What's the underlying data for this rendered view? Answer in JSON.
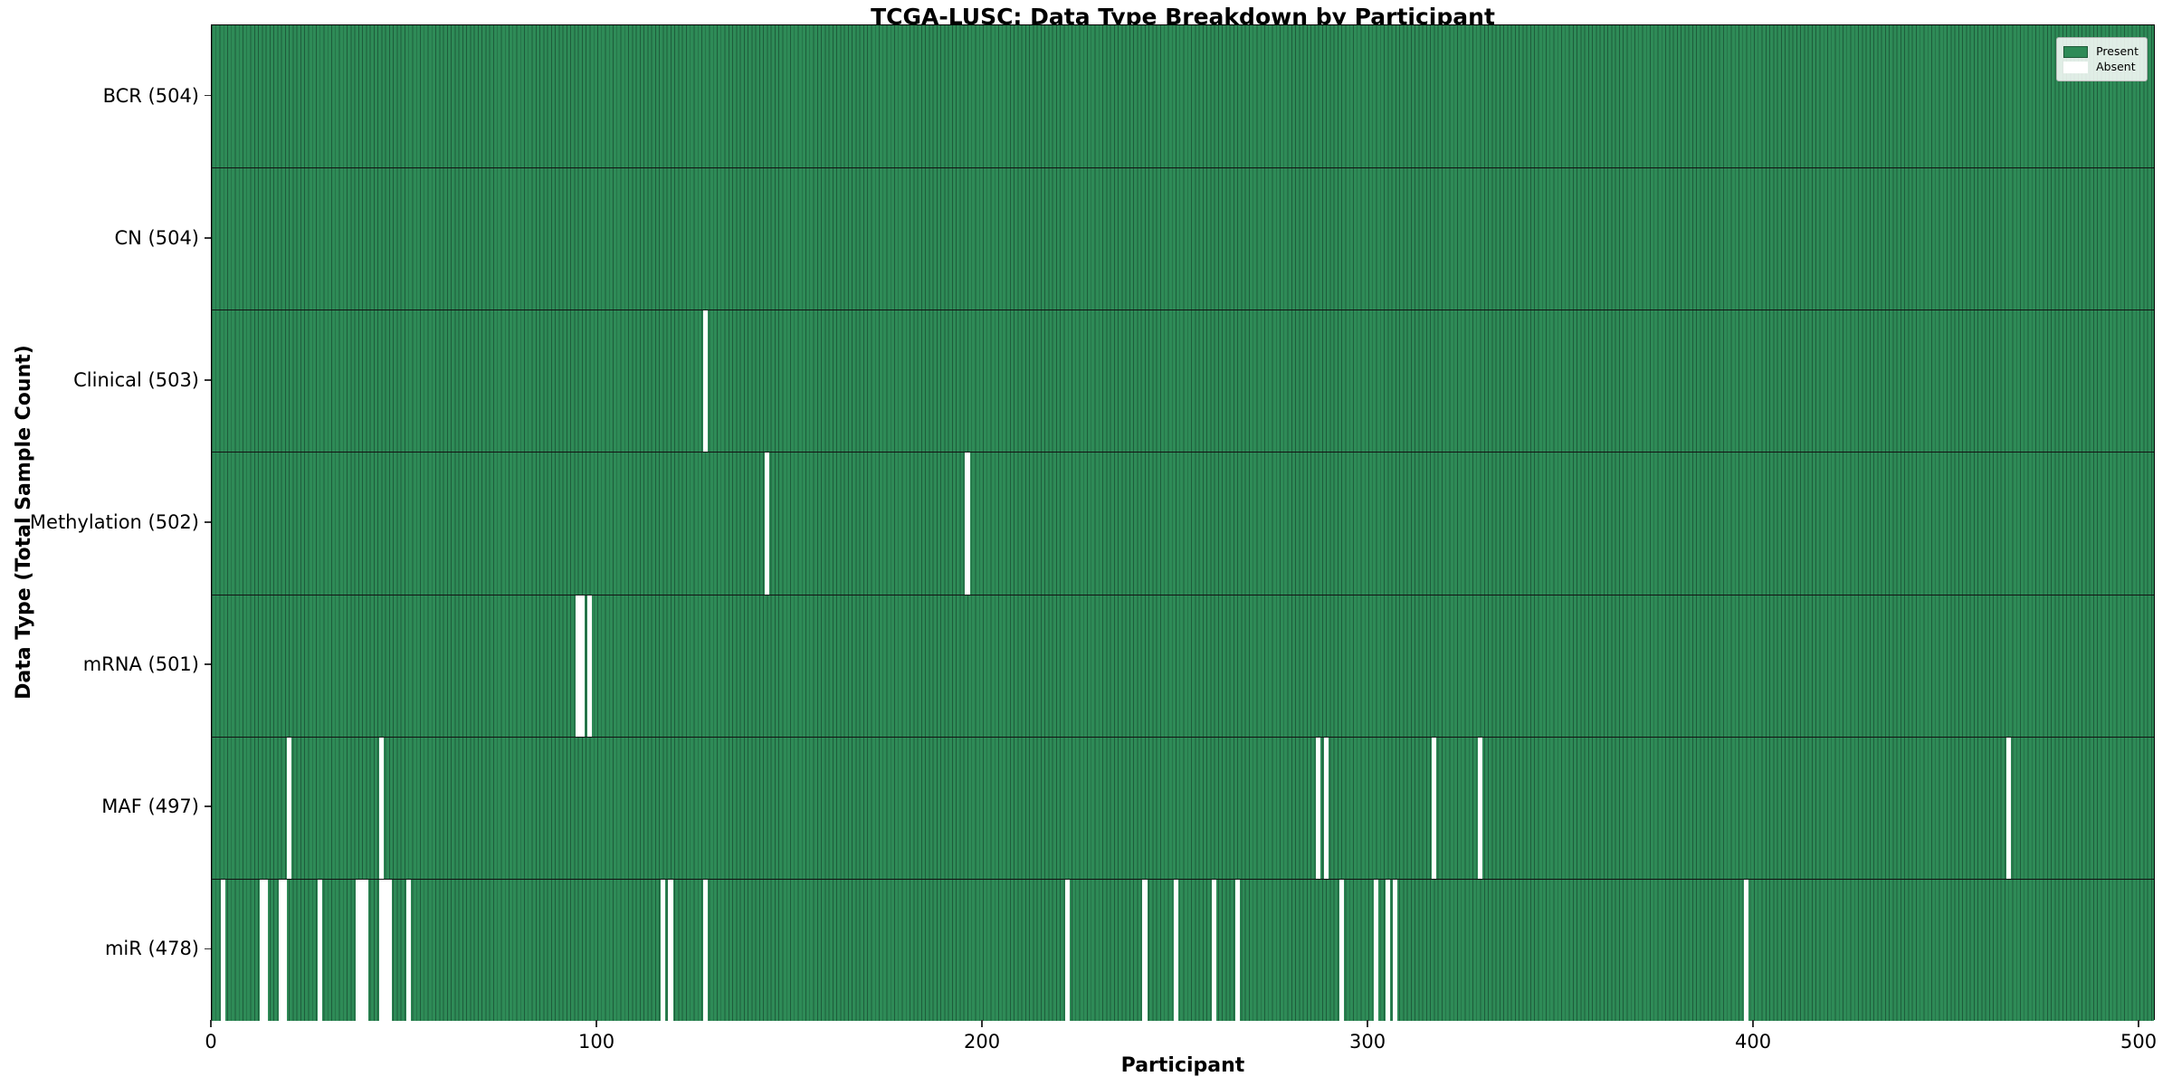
{
  "chart_data": {
    "type": "heatmap",
    "title": "TCGA-LUSC: Data Type Breakdown by Participant",
    "xlabel": "Participant",
    "ylabel": "Data Type (Total Sample Count)",
    "x_ticks": [
      0,
      100,
      200,
      300,
      400,
      500
    ],
    "x_range": [
      0,
      504.2
    ],
    "n_participants": 504,
    "grid": false,
    "legend_position": "upper right",
    "legend": [
      {
        "label": "Present",
        "color": "#2e8b57"
      },
      {
        "label": "Absent",
        "color": "#ffffff"
      }
    ],
    "colors": {
      "present": "#2e8b57",
      "bar_edge": "#1e5c3b",
      "absent": "#ffffff",
      "row_separator": "#131313"
    },
    "rows": [
      {
        "label": "BCR (504)",
        "data_type": "BCR",
        "total": 504,
        "absent_participants": []
      },
      {
        "label": "CN (504)",
        "data_type": "CN",
        "total": 504,
        "absent_participants": []
      },
      {
        "label": "Clinical (503)",
        "data_type": "Clinical",
        "total": 503,
        "absent_participants": [
          128
        ]
      },
      {
        "label": "Methylation (502)",
        "data_type": "Methylation",
        "total": 502,
        "absent_participants": [
          144,
          196
        ]
      },
      {
        "label": "mRNA (501)",
        "data_type": "mRNA",
        "total": 501,
        "absent_participants": [
          95,
          96,
          98
        ]
      },
      {
        "label": "MAF (497)",
        "data_type": "MAF",
        "total": 497,
        "absent_participants": [
          20,
          44,
          287,
          289,
          317,
          329,
          466
        ]
      },
      {
        "label": "miR (478)",
        "data_type": "miR",
        "total": 478,
        "absent_participants": [
          3,
          13,
          14,
          18,
          19,
          28,
          38,
          39,
          40,
          44,
          45,
          46,
          51,
          117,
          119,
          128,
          222,
          242,
          250,
          260,
          266,
          293,
          302,
          305,
          307,
          398
        ]
      }
    ]
  }
}
